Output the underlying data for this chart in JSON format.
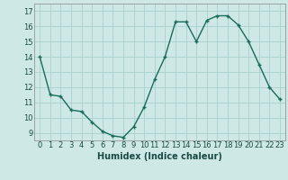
{
  "x": [
    0,
    1,
    2,
    3,
    4,
    5,
    6,
    7,
    8,
    9,
    10,
    11,
    12,
    13,
    14,
    15,
    16,
    17,
    18,
    19,
    20,
    21,
    22,
    23
  ],
  "y": [
    14.0,
    11.5,
    11.4,
    10.5,
    10.4,
    9.7,
    9.1,
    8.8,
    8.7,
    9.4,
    10.7,
    12.5,
    14.0,
    16.3,
    16.3,
    15.0,
    16.4,
    16.7,
    16.7,
    16.1,
    15.0,
    13.5,
    12.0,
    11.2
  ],
  "line_color": "#1a6b5a",
  "marker": "+",
  "marker_size": 3.5,
  "xlabel": "Humidex (Indice chaleur)",
  "xlim": [
    -0.5,
    23.5
  ],
  "ylim": [
    8.5,
    17.5
  ],
  "yticks": [
    9,
    10,
    11,
    12,
    13,
    14,
    15,
    16,
    17
  ],
  "xticks": [
    0,
    1,
    2,
    3,
    4,
    5,
    6,
    7,
    8,
    9,
    10,
    11,
    12,
    13,
    14,
    15,
    16,
    17,
    18,
    19,
    20,
    21,
    22,
    23
  ],
  "xtick_labels": [
    "0",
    "1",
    "2",
    "3",
    "4",
    "5",
    "6",
    "7",
    "8",
    "9",
    "10",
    "11",
    "12",
    "13",
    "14",
    "15",
    "16",
    "17",
    "18",
    "19",
    "20",
    "21",
    "22",
    "23"
  ],
  "bg_color": "#cde8e5",
  "grid_color": "#aacfcc",
  "tick_fontsize": 6,
  "label_fontsize": 7,
  "line_width": 1.0
}
